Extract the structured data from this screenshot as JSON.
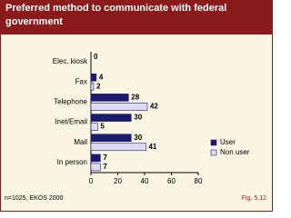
{
  "chart_data": {
    "type": "hbar",
    "title": "Preferred method to communicate with federal government",
    "categories": [
      "Elec. kiosk",
      "Fax",
      "Telephone",
      "Inet/Email",
      "Mail",
      "In person"
    ],
    "series": [
      {
        "name": "User",
        "color": "#1c1c6e",
        "values": [
          0,
          4,
          28,
          30,
          30,
          7
        ]
      },
      {
        "name": "Non user",
        "color": "#dcdcf2",
        "values": [
          null,
          2,
          42,
          5,
          41,
          7
        ]
      }
    ],
    "xlim": [
      0,
      80
    ],
    "xticks": [
      0,
      20,
      40,
      60,
      80
    ],
    "legend": "right",
    "note": "n=1025, EKOS 2000",
    "figure": "Fig. 5.12"
  }
}
